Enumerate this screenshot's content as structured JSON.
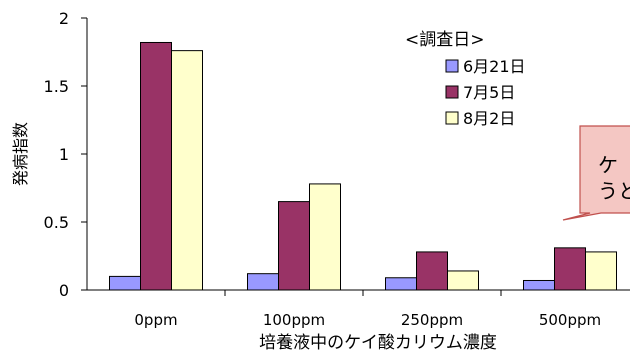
{
  "chart_data": {
    "type": "bar",
    "xlabel": "培養液中のケイ酸カリウム濃度",
    "ylabel": "発病指数",
    "ylim": [
      0,
      2
    ],
    "yticks": [
      0,
      0.5,
      1,
      1.5,
      2
    ],
    "ytick_labels": [
      "0",
      "0.5",
      "1",
      "1.5",
      "2"
    ],
    "categories": [
      "0ppm",
      "100ppm",
      "250ppm",
      "500ppm"
    ],
    "legend_title": "<調査日>",
    "legend_position": "top-right",
    "grid": false,
    "series": [
      {
        "name": "6月21日",
        "color": "#9999ff",
        "values": [
          0.1,
          0.12,
          0.09,
          0.07
        ]
      },
      {
        "name": "7月5日",
        "color": "#993366",
        "values": [
          1.82,
          0.65,
          0.28,
          0.31
        ]
      },
      {
        "name": "8月2日",
        "color": "#ffffcc",
        "values": [
          1.76,
          0.78,
          0.14,
          0.28
        ]
      }
    ],
    "annotation": {
      "lines": [
        "ケ",
        "うと"
      ],
      "fill": "#f4c7c3",
      "stroke": "#c0504d"
    }
  }
}
